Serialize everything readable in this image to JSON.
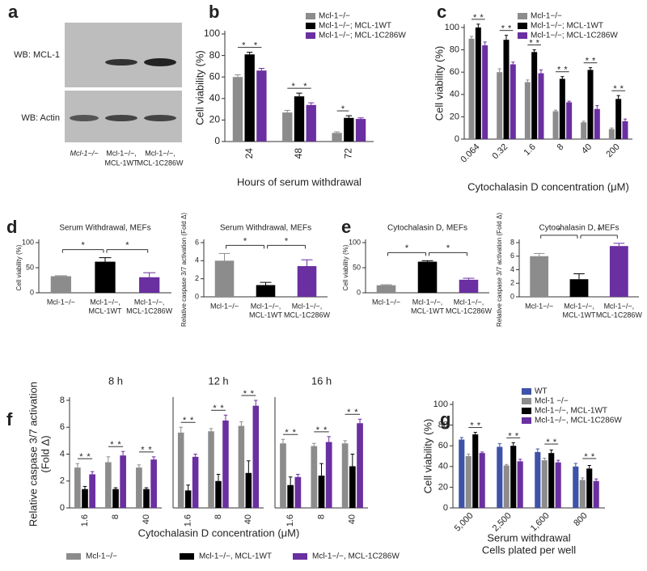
{
  "blot": {
    "panel_label": "a",
    "rows": [
      "WB: MCL-1",
      "WB: Actin"
    ],
    "lanes": [
      [
        "Mcl-1−/−"
      ],
      [
        "Mcl-1−/−,",
        "MCL-1WT"
      ],
      [
        "Mcl-1−/−,",
        "MCL-1C286W"
      ]
    ]
  },
  "chart_data": [
    {
      "type": "bar",
      "panel_label": "b",
      "y_label": "Cell viability (%)",
      "x_label": "Hours of serum withdrawal",
      "categories": [
        "24",
        "48",
        "72"
      ],
      "ylim": [
        0,
        100
      ],
      "yticks": [
        0,
        20,
        40,
        60,
        80,
        100
      ],
      "series": [
        {
          "name": "Mcl-1−/−",
          "color": "#8c8c8c",
          "values": [
            60,
            27,
            8
          ],
          "errors": [
            2,
            2,
            1
          ]
        },
        {
          "name": "Mcl-1−/−; MCL-1WT",
          "color": "#000000",
          "values": [
            81,
            42,
            22
          ],
          "errors": [
            2,
            3,
            2
          ]
        },
        {
          "name": "Mcl-1−/−; MCL-1C286W",
          "color": "#6a2fa0",
          "values": [
            66,
            34,
            21
          ],
          "errors": [
            2,
            2,
            1
          ]
        }
      ],
      "significance": [
        [
          "*",
          "*"
        ],
        [
          "*",
          "*"
        ],
        [
          "*"
        ]
      ]
    },
    {
      "type": "bar",
      "panel_label": "c",
      "y_label": "Cell viability (%)",
      "x_label": "Cytochalasin D concentration (μM)",
      "categories": [
        "0.064",
        "0.32",
        "1.6",
        "8",
        "40",
        "200"
      ],
      "ylim": [
        0,
        100
      ],
      "yticks": [
        0,
        20,
        40,
        60,
        80,
        100
      ],
      "series": [
        {
          "name": "Mcl-1−/−",
          "color": "#8c8c8c",
          "values": [
            90,
            60,
            51,
            25,
            15,
            9
          ],
          "errors": [
            2,
            3,
            2,
            1,
            1,
            1
          ]
        },
        {
          "name": "Mcl-1−/−; MCL-1WT",
          "color": "#000000",
          "values": [
            100,
            89,
            78,
            54,
            62,
            36
          ],
          "errors": [
            3,
            4,
            2,
            2,
            2,
            3
          ]
        },
        {
          "name": "Mcl-1−/−; MCL-1C286W",
          "color": "#6a2fa0",
          "values": [
            84,
            67,
            59,
            33,
            27,
            16
          ],
          "errors": [
            3,
            2,
            3,
            1,
            3,
            2
          ]
        }
      ],
      "significance": [
        [
          "*",
          "*"
        ],
        [
          "*",
          "*"
        ],
        [
          "*",
          "*"
        ],
        [
          "*",
          "*"
        ],
        [
          "*",
          "*"
        ],
        [
          "*",
          "*"
        ]
      ]
    },
    {
      "type": "bar",
      "panel_label": "d",
      "title": "Serum Withdrawal, MEFs",
      "y_label": "Cell viability (%)",
      "categories": [
        [
          "Mcl-1−/−"
        ],
        [
          "Mcl-1−/−,",
          "MCL-1WT"
        ],
        [
          "Mcl-1−/−,",
          "MCL-1C286W"
        ]
      ],
      "ylim": [
        0,
        100
      ],
      "yticks": [
        0,
        50,
        100
      ],
      "values": [
        33,
        62,
        31
      ],
      "errors": [
        1,
        8,
        9
      ],
      "colors": [
        "#8c8c8c",
        "#000000",
        "#6a2fa0"
      ],
      "significance": [
        "*",
        "*"
      ]
    },
    {
      "type": "bar",
      "title": "Serum Withdrawal, MEFs",
      "y_label": "Relative caspase 3/7 activation (Fold Δ)",
      "categories": [
        [
          "Mcl-1−/−"
        ],
        [
          "Mcl-1−/−,",
          "MCL-1WT"
        ],
        [
          "Mcl-1−/−,",
          "MCL-1C286W"
        ]
      ],
      "ylim": [
        0,
        6
      ],
      "yticks": [
        0,
        2,
        4,
        6
      ],
      "values": [
        4.0,
        1.3,
        3.4
      ],
      "errors": [
        0.8,
        0.3,
        0.7
      ],
      "colors": [
        "#8c8c8c",
        "#000000",
        "#6a2fa0"
      ],
      "significance": [
        "*",
        "*"
      ]
    },
    {
      "type": "bar",
      "panel_label": "e",
      "title": "Cytochalasin D, MEFs",
      "y_label": "Cell viability (%)",
      "categories": [
        [
          "Mcl-1−/−"
        ],
        [
          "Mcl-1−/−,",
          "MCL-1WT"
        ],
        [
          "Mcl-1−/−,",
          "MCL-1C286W"
        ]
      ],
      "ylim": [
        0,
        100
      ],
      "yticks": [
        0,
        50,
        100
      ],
      "values": [
        15,
        62,
        26
      ],
      "errors": [
        1,
        2,
        3
      ],
      "colors": [
        "#8c8c8c",
        "#000000",
        "#6a2fa0"
      ],
      "significance": [
        "*",
        "*"
      ]
    },
    {
      "type": "bar",
      "title": "Cytochalasin D, MEFs",
      "y_label": "Relative caspase 3/7 activation (Fold Δ)",
      "categories": [
        [
          "Mcl-1−/−"
        ],
        [
          "Mcl-1−/−,",
          "MCL-1WT"
        ],
        [
          "Mcl-1−/−,",
          "MCL-1C286W"
        ]
      ],
      "ylim": [
        0,
        8
      ],
      "yticks": [
        0,
        2,
        4,
        6,
        8
      ],
      "values": [
        6.0,
        2.6,
        7.5
      ],
      "errors": [
        0.4,
        0.8,
        0.4
      ],
      "colors": [
        "#8c8c8c",
        "#000000",
        "#6a2fa0"
      ],
      "significance": [
        "*",
        "*"
      ]
    },
    {
      "type": "bar",
      "panel_label": "f",
      "y_label": [
        "Relative caspase 3/7 activation",
        "(Fold Δ)"
      ],
      "x_label": "Cytochalasin D concentration (μM)",
      "facets": [
        "8 h",
        "12 h",
        "16 h"
      ],
      "categories": [
        "1.6",
        "8",
        "40"
      ],
      "ylim": [
        0,
        8
      ],
      "yticks": [
        0,
        2,
        4,
        6,
        8
      ],
      "series": [
        {
          "name": "Mcl-1−/−",
          "color": "#8c8c8c",
          "values": [
            [
              3.0,
              3.4,
              3.0
            ],
            [
              5.6,
              5.7,
              6.1
            ],
            [
              4.8,
              4.6,
              4.8
            ]
          ],
          "errors": [
            [
              0.3,
              0.4,
              0.2
            ],
            [
              0.4,
              0.2,
              0.3
            ],
            [
              0.3,
              0.2,
              0.2
            ]
          ]
        },
        {
          "name": "Mcl-1−/−, MCL-1WT",
          "color": "#000000",
          "values": [
            [
              1.4,
              1.4,
              1.4
            ],
            [
              1.3,
              2.0,
              2.6
            ],
            [
              1.7,
              2.4,
              3.1
            ]
          ],
          "errors": [
            [
              0.2,
              0.1,
              0.1
            ],
            [
              0.4,
              0.5,
              0.9
            ],
            [
              0.6,
              0.9,
              0.9
            ]
          ]
        },
        {
          "name": "Mcl-1−/−, MCL-1C286W",
          "color": "#6a2fa0",
          "values": [
            [
              2.5,
              3.9,
              3.6
            ],
            [
              3.8,
              6.5,
              7.6
            ],
            [
              2.3,
              4.9,
              6.3
            ]
          ],
          "errors": [
            [
              0.2,
              0.3,
              0.2
            ],
            [
              0.2,
              0.4,
              0.4
            ],
            [
              0.2,
              0.4,
              0.3
            ]
          ]
        }
      ],
      "significance": [
        [
          [
            "*",
            "*"
          ],
          [
            "*",
            "*"
          ],
          [
            "*",
            "*"
          ]
        ],
        [
          [
            "*",
            "*"
          ],
          [
            "*",
            "*"
          ],
          [
            "*",
            "*"
          ]
        ],
        [
          [
            "*",
            "*"
          ],
          [
            "*",
            "*"
          ],
          [
            "*",
            "*"
          ]
        ]
      ]
    },
    {
      "type": "bar",
      "panel_label": "g",
      "y_label": "Cell viability (%)",
      "x_label": [
        "Serum withdrawal",
        "Cells plated per well"
      ],
      "categories": [
        "5,000",
        "2,500",
        "1,600",
        "800"
      ],
      "ylim": [
        0,
        100
      ],
      "yticks": [
        0,
        20,
        40,
        60,
        80,
        100
      ],
      "series": [
        {
          "name": "WT",
          "color": "#3d52a8",
          "values": [
            66,
            59,
            54,
            40
          ],
          "errors": [
            2,
            3,
            3,
            3
          ]
        },
        {
          "name": "Mcl-1 −/−",
          "color": "#8c8c8c",
          "values": [
            50,
            41,
            46,
            27
          ],
          "errors": [
            2,
            1,
            2,
            2
          ]
        },
        {
          "name": "Mcl-1−/−, MCL-1WT",
          "color": "#000000",
          "values": [
            71,
            60,
            53,
            38
          ],
          "errors": [
            2,
            3,
            3,
            3
          ]
        },
        {
          "name": "Mcl-1−/−, MCL-1C286W",
          "color": "#6a2fa0",
          "values": [
            53,
            45,
            44,
            26
          ],
          "errors": [
            1,
            2,
            2,
            2
          ]
        }
      ],
      "significance": [
        [
          "*",
          "*"
        ],
        [
          "*",
          "*"
        ],
        [
          "*",
          "*"
        ],
        [
          "*",
          "*"
        ]
      ]
    }
  ]
}
